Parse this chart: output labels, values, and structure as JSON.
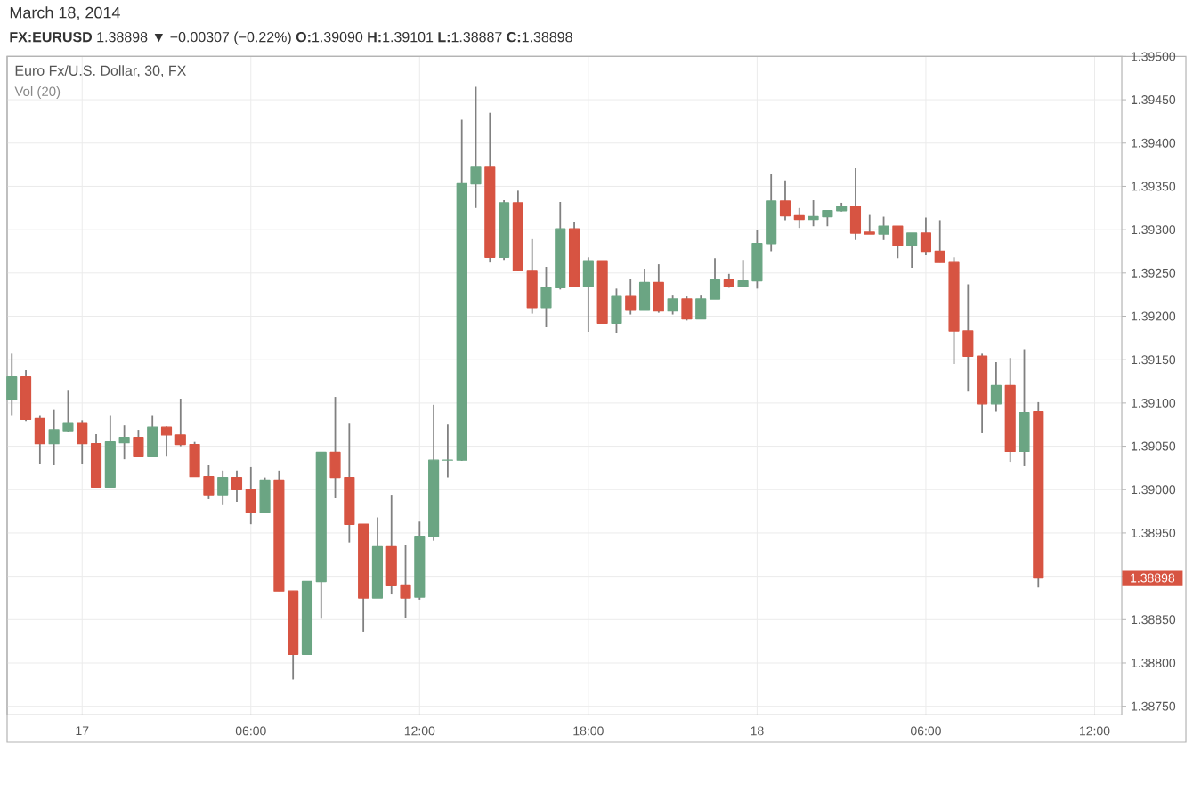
{
  "chart_data": {
    "type": "candlestick",
    "annotations": [
      "March 18, 2014",
      "**FX:EURUSD** 1.38898 ▼ −0.00307 (−0.22%) **O:**1.39090 **H:**1.39101 **L:**1.38887 **C:**1.38898",
      "Euro Fx/U.S. Dollar, 30, FX",
      "Vol (20)",
      "1.38898"
    ],
    "x": [
      "2014-03-16T21:30",
      "2014-03-16T22:00",
      "2014-03-16T22:30",
      "2014-03-16T23:00",
      "2014-03-16T23:30",
      "2014-03-17T00:00",
      "2014-03-17T00:30",
      "2014-03-17T01:00",
      "2014-03-17T01:30",
      "2014-03-17T02:00",
      "2014-03-17T02:30",
      "2014-03-17T03:00",
      "2014-03-17T03:30",
      "2014-03-17T04:00",
      "2014-03-17T04:30",
      "2014-03-17T05:00",
      "2014-03-17T05:30",
      "2014-03-17T06:00",
      "2014-03-17T06:30",
      "2014-03-17T07:00",
      "2014-03-17T07:30",
      "2014-03-17T08:00",
      "2014-03-17T08:30",
      "2014-03-17T09:00",
      "2014-03-17T09:30",
      "2014-03-17T10:00",
      "2014-03-17T10:30",
      "2014-03-17T11:00",
      "2014-03-17T11:30",
      "2014-03-17T12:00",
      "2014-03-17T12:30",
      "2014-03-17T13:00",
      "2014-03-17T13:30",
      "2014-03-17T14:00",
      "2014-03-17T14:30",
      "2014-03-17T15:00",
      "2014-03-17T15:30",
      "2014-03-17T16:00",
      "2014-03-17T16:30",
      "2014-03-17T17:00",
      "2014-03-17T17:30",
      "2014-03-17T18:00",
      "2014-03-17T18:30",
      "2014-03-17T19:00",
      "2014-03-17T19:30",
      "2014-03-17T20:00",
      "2014-03-17T20:30",
      "2014-03-17T21:00",
      "2014-03-17T21:30",
      "2014-03-17T22:00",
      "2014-03-17T22:30",
      "2014-03-17T23:00",
      "2014-03-17T23:30",
      "2014-03-18T00:00",
      "2014-03-18T00:30",
      "2014-03-18T01:00",
      "2014-03-18T01:30",
      "2014-03-18T02:00",
      "2014-03-18T02:30",
      "2014-03-18T03:00",
      "2014-03-18T03:30",
      "2014-03-18T04:00",
      "2014-03-18T04:30",
      "2014-03-18T05:00",
      "2014-03-18T05:30",
      "2014-03-18T06:00",
      "2014-03-18T06:30",
      "2014-03-18T07:00",
      "2014-03-18T07:30",
      "2014-03-18T08:00",
      "2014-03-18T08:30",
      "2014-03-18T09:00",
      "2014-03-18T09:30",
      "2014-03-18T10:00"
    ],
    "ohlc": [
      [
        1.39104,
        1.39157,
        1.39086,
        1.3913
      ],
      [
        1.3913,
        1.39138,
        1.39079,
        1.39081
      ],
      [
        1.39082,
        1.39086,
        1.3903,
        1.39053
      ],
      [
        1.39053,
        1.39092,
        1.39028,
        1.39069
      ],
      [
        1.39068,
        1.39115,
        1.39067,
        1.39077
      ],
      [
        1.39077,
        1.3908,
        1.3903,
        1.39053
      ],
      [
        1.39053,
        1.39064,
        1.39003,
        1.39003
      ],
      [
        1.39003,
        1.39086,
        1.39003,
        1.39055
      ],
      [
        1.39054,
        1.39074,
        1.39035,
        1.3906
      ],
      [
        1.3906,
        1.39069,
        1.39039,
        1.39039
      ],
      [
        1.39039,
        1.39086,
        1.39039,
        1.39072
      ],
      [
        1.39072,
        1.39073,
        1.39039,
        1.39063
      ],
      [
        1.39063,
        1.39105,
        1.3905,
        1.39052
      ],
      [
        1.39052,
        1.39055,
        1.39015,
        1.39015
      ],
      [
        1.39015,
        1.39029,
        1.38989,
        1.38994
      ],
      [
        1.38994,
        1.39022,
        1.38983,
        1.39014
      ],
      [
        1.39014,
        1.39022,
        1.38986,
        1.39
      ],
      [
        1.39,
        1.39026,
        1.3896,
        1.38974
      ],
      [
        1.38974,
        1.39014,
        1.38974,
        1.39011
      ],
      [
        1.39011,
        1.39022,
        1.38883,
        1.38883
      ],
      [
        1.38883,
        1.38883,
        1.38781,
        1.3881
      ],
      [
        1.3881,
        1.38894,
        1.3881,
        1.38894
      ],
      [
        1.38894,
        1.39043,
        1.38851,
        1.39043
      ],
      [
        1.39043,
        1.39107,
        1.3899,
        1.39014
      ],
      [
        1.39014,
        1.39077,
        1.38939,
        1.3896
      ],
      [
        1.3896,
        1.3896,
        1.38836,
        1.38875
      ],
      [
        1.38875,
        1.38968,
        1.38875,
        1.38934
      ],
      [
        1.38934,
        1.38994,
        1.38879,
        1.3889
      ],
      [
        1.3889,
        1.38936,
        1.38852,
        1.38875
      ],
      [
        1.38876,
        1.38963,
        1.38873,
        1.38946
      ],
      [
        1.38946,
        1.39098,
        1.38941,
        1.39034
      ],
      [
        1.39034,
        1.39075,
        1.39014,
        1.39034
      ],
      [
        1.39034,
        1.39427,
        1.39033,
        1.39353
      ],
      [
        1.39353,
        1.39465,
        1.39325,
        1.39372
      ],
      [
        1.39372,
        1.39435,
        1.39263,
        1.39268
      ],
      [
        1.39268,
        1.39334,
        1.39265,
        1.39331
      ],
      [
        1.39331,
        1.39345,
        1.39253,
        1.39253
      ],
      [
        1.39253,
        1.39289,
        1.39203,
        1.3921
      ],
      [
        1.3921,
        1.39257,
        1.39188,
        1.39233
      ],
      [
        1.39233,
        1.39332,
        1.39231,
        1.39301
      ],
      [
        1.39301,
        1.39309,
        1.39234,
        1.39234
      ],
      [
        1.39234,
        1.39268,
        1.39182,
        1.39264
      ],
      [
        1.39264,
        1.39264,
        1.39192,
        1.39192
      ],
      [
        1.39192,
        1.39232,
        1.39181,
        1.39223
      ],
      [
        1.39223,
        1.39243,
        1.39202,
        1.39208
      ],
      [
        1.39208,
        1.39255,
        1.39208,
        1.39239
      ],
      [
        1.39239,
        1.3926,
        1.39204,
        1.39206
      ],
      [
        1.39206,
        1.39224,
        1.39202,
        1.3922
      ],
      [
        1.3922,
        1.39223,
        1.39195,
        1.39197
      ],
      [
        1.39197,
        1.39224,
        1.39197,
        1.3922
      ],
      [
        1.3922,
        1.39267,
        1.3922,
        1.39242
      ],
      [
        1.39242,
        1.39249,
        1.39233,
        1.39234
      ],
      [
        1.39234,
        1.39265,
        1.39234,
        1.39241
      ],
      [
        1.39241,
        1.393,
        1.39232,
        1.39284
      ],
      [
        1.39284,
        1.39364,
        1.39275,
        1.39333
      ],
      [
        1.39333,
        1.39357,
        1.39311,
        1.39316
      ],
      [
        1.39316,
        1.39325,
        1.39302,
        1.39312
      ],
      [
        1.39312,
        1.39334,
        1.39304,
        1.39315
      ],
      [
        1.39315,
        1.39322,
        1.39304,
        1.39322
      ],
      [
        1.39322,
        1.39331,
        1.39321,
        1.39327
      ],
      [
        1.39327,
        1.39371,
        1.39288,
        1.39296
      ],
      [
        1.39297,
        1.39317,
        1.39295,
        1.39295
      ],
      [
        1.39295,
        1.39315,
        1.39288,
        1.39304
      ],
      [
        1.39304,
        1.39304,
        1.39267,
        1.39282
      ],
      [
        1.39282,
        1.39296,
        1.39256,
        1.39296
      ],
      [
        1.39296,
        1.39314,
        1.39271,
        1.39275
      ],
      [
        1.39275,
        1.39311,
        1.39263,
        1.39263
      ],
      [
        1.39263,
        1.39268,
        1.39145,
        1.39183
      ],
      [
        1.39183,
        1.39237,
        1.39114,
        1.39154
      ],
      [
        1.39154,
        1.39157,
        1.39065,
        1.39099
      ],
      [
        1.39099,
        1.39147,
        1.3909,
        1.3912
      ],
      [
        1.3912,
        1.39152,
        1.39032,
        1.39044
      ],
      [
        1.39044,
        1.39162,
        1.39027,
        1.39089
      ],
      [
        1.3909,
        1.39101,
        1.38887,
        1.38898
      ]
    ],
    "colors": [
      "#6ba583",
      "#d75442",
      "#d75442",
      "#6ba583",
      "#6ba583",
      "#d75442",
      "#d75442",
      "#6ba583",
      "#6ba583",
      "#d75442",
      "#6ba583",
      "#d75442",
      "#d75442",
      "#d75442",
      "#d75442",
      "#6ba583",
      "#d75442",
      "#d75442",
      "#6ba583",
      "#d75442",
      "#d75442",
      "#6ba583",
      "#6ba583",
      "#d75442",
      "#d75442",
      "#d75442",
      "#6ba583",
      "#d75442",
      "#d75442",
      "#6ba583",
      "#6ba583",
      "#6ba583",
      "#6ba583",
      "#6ba583",
      "#d75442",
      "#6ba583",
      "#d75442",
      "#d75442",
      "#6ba583",
      "#6ba583",
      "#d75442",
      "#6ba583",
      "#d75442",
      "#6ba583",
      "#d75442",
      "#6ba583",
      "#d75442",
      "#6ba583",
      "#d75442",
      "#6ba583",
      "#6ba583",
      "#d75442",
      "#6ba583",
      "#6ba583",
      "#6ba583",
      "#d75442",
      "#d75442",
      "#6ba583",
      "#6ba583",
      "#6ba583",
      "#d75442",
      "#d75442",
      "#6ba583",
      "#d75442",
      "#6ba583",
      "#d75442",
      "#d75442",
      "#d75442",
      "#d75442",
      "#d75442",
      "#6ba583",
      "#d75442",
      "#6ba583",
      "#d75442"
    ],
    "xlim": [
      "2014-03-16T21:20",
      "2014-03-18T12:58"
    ],
    "xticks": [
      {
        "value": "2014-03-17T00:00",
        "label": "17"
      },
      {
        "value": "2014-03-17T06:00",
        "label": "06:00"
      },
      {
        "value": "2014-03-17T12:00",
        "label": "12:00"
      },
      {
        "value": "2014-03-17T18:00",
        "label": "18:00"
      },
      {
        "value": "2014-03-18T00:00",
        "label": "18"
      },
      {
        "value": "2014-03-18T06:00",
        "label": "06:00"
      },
      {
        "value": "2014-03-18T12:00",
        "label": "12:00"
      }
    ],
    "ylim": [
      1.3874,
      1.395
    ],
    "yticks": [
      {
        "value": 1.3875,
        "label": "1.38750"
      },
      {
        "value": 1.388,
        "label": "1.38800"
      },
      {
        "value": 1.3885,
        "label": "1.38850"
      },
      {
        "value": 1.389,
        "label": null
      },
      {
        "value": 1.3895,
        "label": "1.38950"
      },
      {
        "value": 1.39,
        "label": "1.39000"
      },
      {
        "value": 1.3905,
        "label": "1.39050"
      },
      {
        "value": 1.391,
        "label": "1.39100"
      },
      {
        "value": 1.3915,
        "label": "1.39150"
      },
      {
        "value": 1.392,
        "label": "1.39200"
      },
      {
        "value": 1.3925,
        "label": "1.39250"
      },
      {
        "value": 1.393,
        "label": "1.39300"
      },
      {
        "value": 1.3935,
        "label": "1.39350"
      },
      {
        "value": 1.394,
        "label": "1.39400"
      },
      {
        "value": 1.3945,
        "label": "1.39450"
      },
      {
        "value": 1.395,
        "label": "1.39500"
      }
    ],
    "grid": true
  }
}
